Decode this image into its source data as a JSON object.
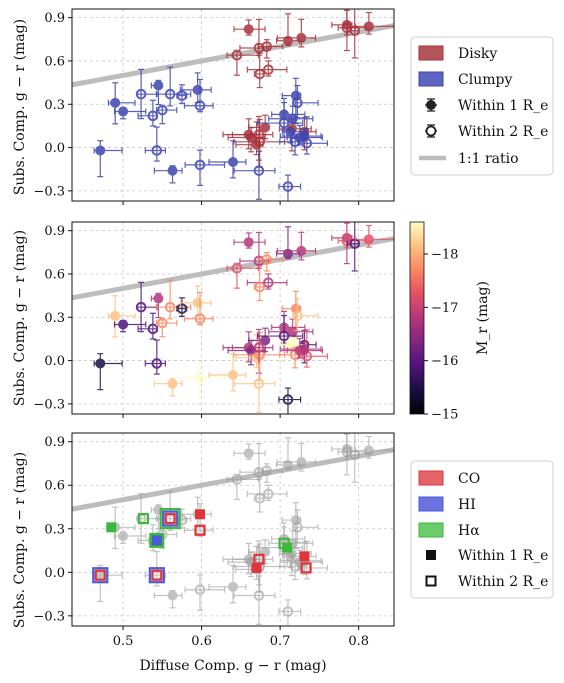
{
  "figure": {
    "xlabel": "Diffuse Comp. g − r (mag)",
    "ylabel": "Subs. Comp. g − r (mag)",
    "colorbar_label": "M_r (mag)",
    "colorbar_ticks": [
      -18,
      -17,
      -16,
      -15
    ]
  },
  "legends": {
    "top": {
      "disky": "Disky",
      "clumpy": "Clumpy",
      "within1": "Within 1 R_e",
      "within2": "Within 2 R_e",
      "ratio": "1:1 ratio"
    },
    "bottom": {
      "co": "CO",
      "hi": "HI",
      "ha": "Hα",
      "within1": "Within 1 R_e",
      "within2": "Within 2 R_e"
    }
  },
  "colors": {
    "disky": "#a8323a",
    "clumpy": "#3d45b0",
    "grey": "#9a9a9a",
    "co": "#e0353c",
    "hi": "#4a5ad8",
    "ha": "#3cb83c",
    "line": "#bdbdbd"
  },
  "chart_data": [
    {
      "type": "scatter",
      "panel": "top",
      "xlim": [
        0.435,
        0.845
      ],
      "ylim": [
        -0.37,
        0.96
      ],
      "yticks": [
        -0.3,
        0.0,
        0.3,
        0.6,
        0.9
      ],
      "grid": true,
      "legend_position": "right",
      "one_to_one_line": [
        [
          0.435,
          0.435
        ],
        [
          0.845,
          0.845
        ]
      ],
      "series": [
        {
          "name": "Disky",
          "points": [
            {
              "x": 0.66,
              "y": 0.82,
              "r": 1
            },
            {
              "x": 0.785,
              "y": 0.85,
              "r": 1
            },
            {
              "x": 0.645,
              "y": 0.64,
              "r": 2
            },
            {
              "x": 0.785,
              "y": 0.83,
              "r": 2
            },
            {
              "x": 0.795,
              "y": 0.81,
              "r": 2
            },
            {
              "x": 0.813,
              "y": 0.84,
              "r": 1
            },
            {
              "x": 0.673,
              "y": 0.69,
              "r": 2
            },
            {
              "x": 0.683,
              "y": 0.7,
              "r": 2
            },
            {
              "x": 0.71,
              "y": 0.74,
              "r": 1
            },
            {
              "x": 0.727,
              "y": 0.76,
              "r": 1
            },
            {
              "x": 0.685,
              "y": 0.54,
              "r": 2
            },
            {
              "x": 0.674,
              "y": 0.51,
              "r": 2
            },
            {
              "x": 0.66,
              "y": 0.09,
              "r": 1
            },
            {
              "x": 0.663,
              "y": 0.07,
              "r": 1
            },
            {
              "x": 0.67,
              "y": 0.02,
              "r": 1
            },
            {
              "x": 0.674,
              "y": 0.04,
              "r": 2
            },
            {
              "x": 0.681,
              "y": 0.14,
              "r": 1
            },
            {
              "x": 0.715,
              "y": 0.13,
              "r": 1
            },
            {
              "x": 0.731,
              "y": 0.11,
              "r": 1
            },
            {
              "x": 0.673,
              "y": 0.09,
              "r": 2
            }
          ]
        },
        {
          "name": "Clumpy",
          "points": [
            {
              "x": 0.471,
              "y": -0.02,
              "r": 1
            },
            {
              "x": 0.49,
              "y": 0.31,
              "r": 1
            },
            {
              "x": 0.5,
              "y": 0.25,
              "r": 1
            },
            {
              "x": 0.523,
              "y": 0.37,
              "r": 2
            },
            {
              "x": 0.538,
              "y": 0.22,
              "r": 2
            },
            {
              "x": 0.543,
              "y": -0.02,
              "r": 2
            },
            {
              "x": 0.545,
              "y": 0.43,
              "r": 1
            },
            {
              "x": 0.55,
              "y": 0.26,
              "r": 2
            },
            {
              "x": 0.56,
              "y": 0.37,
              "r": 2
            },
            {
              "x": 0.563,
              "y": -0.16,
              "r": 1
            },
            {
              "x": 0.575,
              "y": 0.36,
              "r": 2
            },
            {
              "x": 0.595,
              "y": 0.4,
              "r": 1
            },
            {
              "x": 0.598,
              "y": 0.29,
              "r": 2
            },
            {
              "x": 0.598,
              "y": -0.12,
              "r": 2
            },
            {
              "x": 0.64,
              "y": -0.1,
              "r": 1
            },
            {
              "x": 0.673,
              "y": -0.16,
              "r": 2
            },
            {
              "x": 0.72,
              "y": 0.36,
              "r": 1
            },
            {
              "x": 0.705,
              "y": 0.23,
              "r": 1
            },
            {
              "x": 0.716,
              "y": 0.2,
              "r": 1
            },
            {
              "x": 0.705,
              "y": 0.17,
              "r": 2
            },
            {
              "x": 0.713,
              "y": 0.11,
              "r": 1
            },
            {
              "x": 0.719,
              "y": 0.04,
              "r": 2
            },
            {
              "x": 0.734,
              "y": 0.03,
              "r": 2
            },
            {
              "x": 0.725,
              "y": 0.07,
              "r": 1
            },
            {
              "x": 0.731,
              "y": 0.08,
              "r": 1
            },
            {
              "x": 0.71,
              "y": -0.27,
              "r": 2
            },
            {
              "x": 0.722,
              "y": 0.31,
              "r": 2
            }
          ]
        }
      ]
    },
    {
      "type": "scatter",
      "panel": "middle",
      "color_by": "M_r",
      "xlim": [
        0.435,
        0.845
      ],
      "ylim": [
        -0.37,
        0.96
      ],
      "yticks": [
        -0.3,
        0.0,
        0.3,
        0.6,
        0.9
      ],
      "clim": [
        -15,
        -18.6
      ],
      "grid": true
    },
    {
      "type": "scatter",
      "panel": "bottom",
      "xlim": [
        0.435,
        0.845
      ],
      "ylim": [
        -0.37,
        0.96
      ],
      "xticks": [
        0.5,
        0.6,
        0.7,
        0.8
      ],
      "yticks": [
        -0.3,
        0.0,
        0.3,
        0.6,
        0.9
      ],
      "grid": true,
      "legend_position": "right",
      "gas_tracers": [
        {
          "x": 0.471,
          "y": -0.02,
          "tracers": [
            "HI",
            "CO"
          ],
          "r": 2
        },
        {
          "x": 0.485,
          "y": 0.31,
          "tracers": [
            "Ha"
          ],
          "r": 1
        },
        {
          "x": 0.526,
          "y": 0.37,
          "tracers": [
            "Ha"
          ],
          "r": 2
        },
        {
          "x": 0.543,
          "y": -0.02,
          "tracers": [
            "HI",
            "CO"
          ],
          "r": 2
        },
        {
          "x": 0.543,
          "y": 0.22,
          "tracers": [
            "Ha",
            "HI"
          ],
          "r": 1
        },
        {
          "x": 0.56,
          "y": 0.37,
          "tracers": [
            "Ha",
            "HI",
            "CO"
          ],
          "r": 2
        },
        {
          "x": 0.598,
          "y": 0.4,
          "tracers": [
            "CO"
          ],
          "r": 1
        },
        {
          "x": 0.598,
          "y": 0.29,
          "tracers": [
            "CO"
          ],
          "r": 2
        },
        {
          "x": 0.705,
          "y": 0.2,
          "tracers": [
            "Ha"
          ],
          "r": 2
        },
        {
          "x": 0.709,
          "y": 0.17,
          "tracers": [
            "Ha"
          ],
          "r": 1
        },
        {
          "x": 0.67,
          "y": 0.03,
          "tracers": [
            "CO"
          ],
          "r": 1
        },
        {
          "x": 0.673,
          "y": 0.09,
          "tracers": [
            "CO"
          ],
          "r": 2
        },
        {
          "x": 0.731,
          "y": 0.11,
          "tracers": [
            "CO"
          ],
          "r": 1
        },
        {
          "x": 0.733,
          "y": 0.03,
          "tracers": [
            "CO"
          ],
          "r": 2
        }
      ]
    }
  ]
}
